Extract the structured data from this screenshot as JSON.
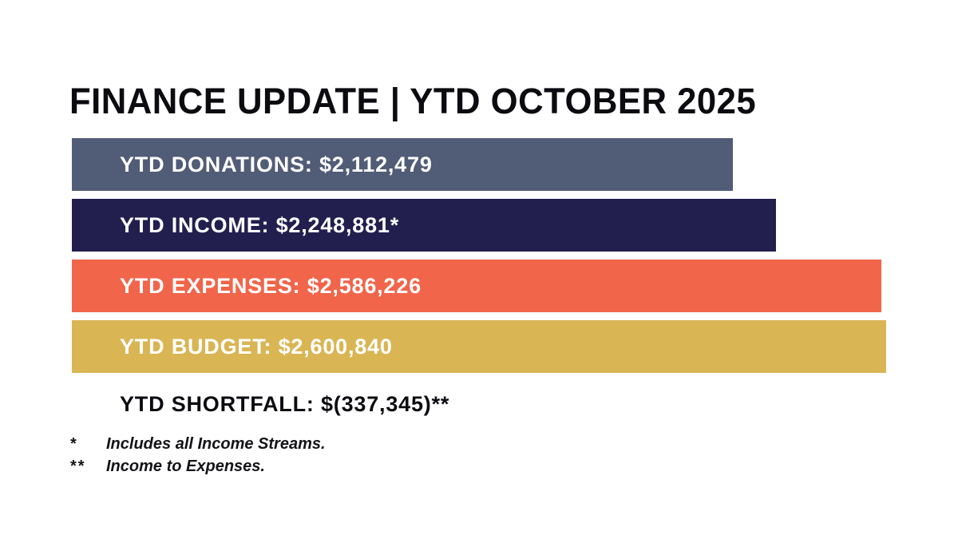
{
  "title": "FINANCE UPDATE | YTD OCTOBER 2025",
  "chart_data": {
    "type": "bar",
    "orientation": "horizontal",
    "title": "FINANCE UPDATE | YTD OCTOBER 2025",
    "categories": [
      "YTD Donations",
      "YTD Income",
      "YTD Expenses",
      "YTD Budget"
    ],
    "values": [
      2112479,
      2248881,
      2586226,
      2600840
    ],
    "xlim": [
      0,
      2600840
    ],
    "grid": false,
    "legend": false,
    "bars": [
      {
        "label": "YTD DONATIONS: $2,112,479",
        "value": 2112479,
        "color": "#515c77"
      },
      {
        "label": "YTD INCOME: $2,248,881*",
        "value": 2248881,
        "color": "#221f4f"
      },
      {
        "label": "YTD EXPENSES: $2,586,226",
        "value": 2586226,
        "color": "#f1654a"
      },
      {
        "label": "YTD BUDGET: $2,600,840",
        "value": 2600840,
        "color": "#d9b554"
      }
    ]
  },
  "shortfall": {
    "label": "YTD SHORTFALL: $(337,345)**",
    "value": -337345
  },
  "footnotes": [
    {
      "marker": "*",
      "text": "Includes all Income Streams."
    },
    {
      "marker": "**",
      "text": "Income to Expenses."
    }
  ],
  "colors": {
    "background": "#ffffff",
    "heading_text": "#0b0b10",
    "bar_text": "#ffffff",
    "bar_donations": "#515c77",
    "bar_income": "#221f4f",
    "bar_expenses": "#f1654a",
    "bar_budget": "#d9b554"
  }
}
